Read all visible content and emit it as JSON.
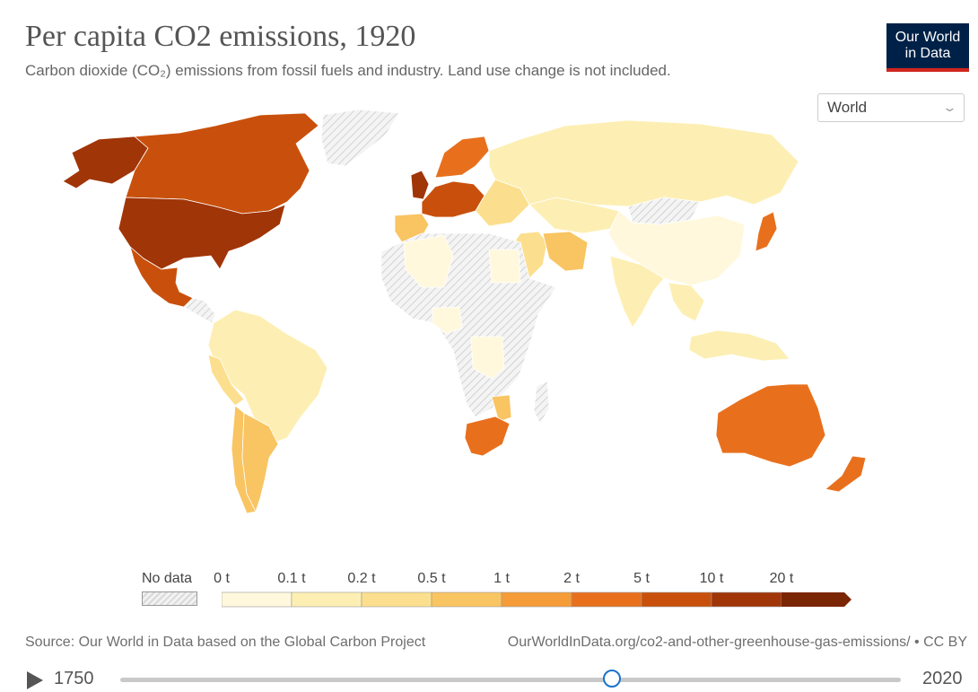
{
  "header": {
    "title": "Per capita CO2 emissions, 1920",
    "subtitle": "Carbon dioxide (CO₂) emissions from fossil fuels and industry. Land use change is not included."
  },
  "logo": {
    "line1": "Our World",
    "line2": "in Data"
  },
  "entity_select": {
    "value": "World"
  },
  "legend": {
    "no_data_label": "No data",
    "bins": [
      "0 t",
      "0.1 t",
      "0.2 t",
      "0.5 t",
      "1 t",
      "2 t",
      "5 t",
      "10 t",
      "20 t"
    ],
    "colors": [
      "#fff8dc",
      "#fdefb3",
      "#fcdf8e",
      "#f9c462",
      "#f59c38",
      "#e8701d",
      "#c9500c",
      "#a03508",
      "#7a2503"
    ],
    "no_data_color": "#e6e6e6"
  },
  "map_colors": {
    "usa": "#a03508",
    "canada": "#c9500c",
    "mexico": "#c9500c",
    "alaska": "#a03508",
    "greenland": "#e6e6e6",
    "uk": "#a03508",
    "west_europe": "#c9500c",
    "scandinavia": "#e8701d",
    "iberia": "#f9c462",
    "east_europe": "#fcdf8e",
    "russia": "#fdefb3",
    "middle_east": "#fcdf8e",
    "iran": "#f9c462",
    "china": "#fff8dc",
    "india": "#fdefb3",
    "japan": "#e8701d",
    "south_america": "#fdefb3",
    "argentina": "#f9c462",
    "chile": "#f9c462",
    "peru": "#fcdf8e",
    "africa_nodata": "#e6e6e6",
    "algeria": "#fff8dc",
    "egypt": "#fff8dc",
    "nigeria": "#fff8dc",
    "congo": "#fff8dc",
    "south_africa": "#e8701d",
    "mozambique": "#f9c462",
    "australia": "#e8701d",
    "new_zealand": "#e8701d",
    "indonesia": "#fdefb3",
    "se_asia": "#fdefb3",
    "kazakhstan": "#fdefb3",
    "mongolia": "#e6e6e6",
    "madagascar": "#e6e6e6"
  },
  "footer": {
    "source": "Source: Our World in Data based on the Global Carbon Project",
    "url": "OurWorldInData.org/co2-and-other-greenhouse-gas-emissions/ • CC BY"
  },
  "timeline": {
    "start_year": "1750",
    "end_year": "2020",
    "current_fraction": 0.63
  }
}
